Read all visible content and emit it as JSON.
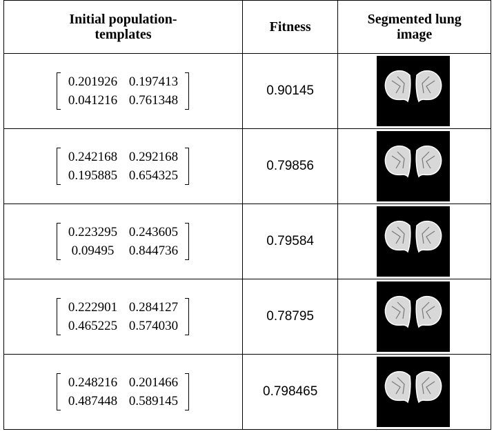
{
  "table": {
    "header": [
      "Initial population-templates",
      "Fitness",
      "Segmented lung image"
    ],
    "rows": [
      {
        "template": [
          [
            "0.201926",
            "0.197413"
          ],
          [
            "0.041216",
            "0.761348"
          ]
        ],
        "fitness": "0.90145"
      },
      {
        "template": [
          [
            "0.242168",
            "0.292168"
          ],
          [
            "0.195885",
            "0.654325"
          ]
        ],
        "fitness": "0.79856"
      },
      {
        "template": [
          [
            "0.223295",
            "0.243605"
          ],
          [
            "0.09495",
            "0.844736"
          ]
        ],
        "fitness": "0.79584"
      },
      {
        "template": [
          [
            "0.222901",
            "0.284127"
          ],
          [
            "0.465225",
            "0.574030"
          ]
        ],
        "fitness": "0.78795"
      },
      {
        "template": [
          [
            "0.248216",
            "0.201466"
          ],
          [
            "0.487448",
            "0.589145"
          ]
        ],
        "fitness": "0.798465"
      }
    ]
  }
}
